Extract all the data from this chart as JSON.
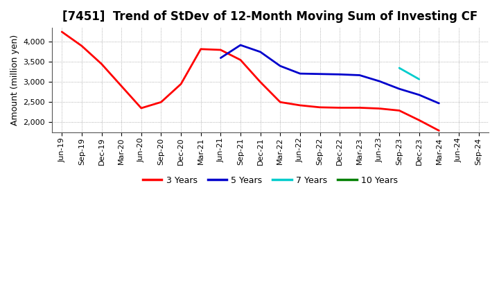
{
  "title": "[7451]  Trend of StDev of 12-Month Moving Sum of Investing CF",
  "ylabel": "Amount (million yen)",
  "background_color": "#ffffff",
  "grid_color": "#aaaaaa",
  "ylim": [
    1750,
    4350
  ],
  "yticks": [
    2000,
    2500,
    3000,
    3500,
    4000
  ],
  "series": {
    "3years": {
      "color": "#ff0000",
      "label": "3 Years",
      "x": [
        "Jun-19",
        "Sep-19",
        "Dec-19",
        "Mar-20",
        "Jun-20",
        "Sep-20",
        "Dec-20",
        "Mar-21",
        "Jun-21",
        "Sep-21",
        "Dec-21",
        "Mar-22",
        "Jun-22",
        "Sep-22",
        "Dec-22",
        "Mar-23",
        "Jun-23",
        "Sep-23",
        "Dec-23",
        "Mar-24"
      ],
      "y": [
        4250,
        3900,
        3450,
        2900,
        2350,
        2500,
        2950,
        3820,
        3800,
        3550,
        3000,
        2500,
        2420,
        2370,
        2360,
        2360,
        2340,
        2290,
        2050,
        1790
      ]
    },
    "5years": {
      "color": "#0000cc",
      "label": "5 Years",
      "x": [
        "Jun-21",
        "Sep-21",
        "Dec-21",
        "Mar-22",
        "Jun-22",
        "Sep-22",
        "Dec-22",
        "Mar-23",
        "Jun-23",
        "Sep-23",
        "Dec-23",
        "Mar-24"
      ],
      "y": [
        3600,
        3920,
        3750,
        3400,
        3210,
        3200,
        3190,
        3170,
        3020,
        2830,
        2680,
        2470
      ]
    },
    "7years": {
      "color": "#00cccc",
      "label": "7 Years",
      "x": [
        "Sep-23",
        "Dec-23"
      ],
      "y": [
        3350,
        3070
      ]
    },
    "10years": {
      "color": "#008000",
      "label": "10 Years",
      "x": [],
      "y": []
    }
  },
  "xtick_labels": [
    "Jun-19",
    "Sep-19",
    "Dec-19",
    "Mar-20",
    "Jun-20",
    "Sep-20",
    "Dec-20",
    "Mar-21",
    "Jun-21",
    "Sep-21",
    "Dec-21",
    "Mar-22",
    "Jun-22",
    "Sep-22",
    "Dec-22",
    "Mar-23",
    "Jun-23",
    "Sep-23",
    "Dec-23",
    "Mar-24",
    "Jun-24",
    "Sep-24"
  ],
  "title_fontsize": 12,
  "axis_fontsize": 9,
  "tick_fontsize": 8,
  "legend_fontsize": 9,
  "linewidth": 2.0
}
